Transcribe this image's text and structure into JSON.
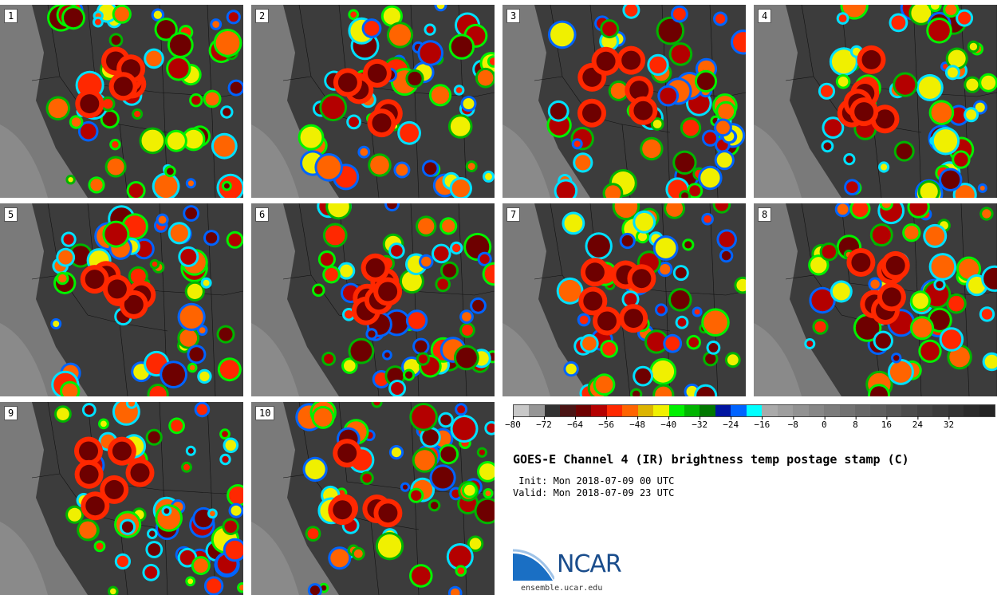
{
  "panels": [
    {
      "label": "1"
    },
    {
      "label": "2"
    },
    {
      "label": "3"
    },
    {
      "label": "4"
    },
    {
      "label": "5"
    },
    {
      "label": "6"
    },
    {
      "label": "7"
    },
    {
      "label": "8"
    },
    {
      "label": "9"
    },
    {
      "label": "10"
    }
  ],
  "colorbar": {
    "colors": [
      "#c8c8c8",
      "#969696",
      "#323232",
      "#4a1414",
      "#6e0000",
      "#b40000",
      "#ff2800",
      "#ff6400",
      "#dcb400",
      "#f0f000",
      "#00f000",
      "#00b400",
      "#007800",
      "#0014a0",
      "#0064ff",
      "#00ffff",
      "#aaaaaa",
      "#9e9e9e",
      "#929292",
      "#878787",
      "#7c7c7c",
      "#727272",
      "#686868",
      "#5e5e5e",
      "#555555",
      "#4c4c4c",
      "#434343",
      "#3b3b3b",
      "#333333",
      "#2b2b2b",
      "#242424"
    ],
    "ticks": [
      "−80",
      "−72",
      "−64",
      "−56",
      "−48",
      "−40",
      "−32",
      "−24",
      "−16",
      "−8",
      "0",
      "8",
      "16",
      "24",
      "32"
    ]
  },
  "title": "GOES-E Channel 4 (IR) brightness temp postage stamp (C)",
  "init_line": " Init: Mon 2018-07-09 00 UTC",
  "valid_line": "Valid: Mon 2018-07-09 23 UTC",
  "logo_text": "NCAR",
  "url": "ensemble.ucar.edu"
}
